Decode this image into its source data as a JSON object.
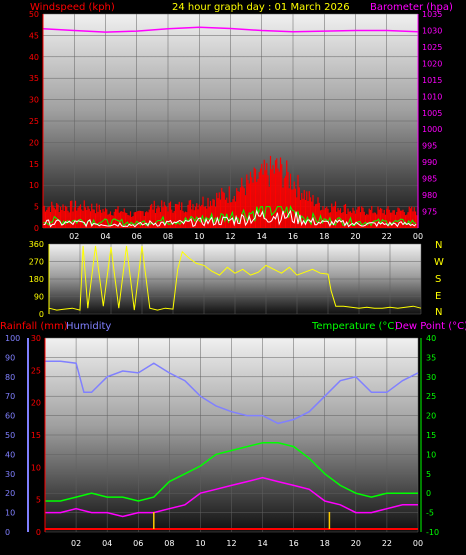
{
  "header": {
    "windspeed_label": "Windspeed (kph)",
    "date_title": "24 hour graph day : 01 March 2026",
    "barometer_label": "Barometer (hpa)"
  },
  "colors": {
    "wind": "#ff0000",
    "wind_low": "#ffffff",
    "wind_green": "#00ff00",
    "barometer": "#ff00ff",
    "direction": "#ffff00",
    "rainfall": "#ff0000",
    "humidity": "#8080ff",
    "temperature": "#00ff00",
    "dewpoint": "#ff00ff",
    "date_title": "#ffff00",
    "compass": "#ffff00",
    "rain_marks": "#ffcc00"
  },
  "time_axis": [
    "02",
    "04",
    "06",
    "08",
    "10",
    "12",
    "14",
    "16",
    "18",
    "20",
    "22",
    "00"
  ],
  "panel2": {
    "compass_letters": [
      "N",
      "W",
      "S",
      "E",
      "N"
    ]
  },
  "panel3": {
    "rainfall_label": "Rainfall (mm)",
    "humidity_label": "Humidity",
    "temperature_label": "Temperature (°C)",
    "dewpoint_label": "Dew Point (°C)"
  },
  "chart_data": [
    {
      "type": "line",
      "title": "24 hour graph day : 01 March 2026",
      "series": [
        {
          "name": "Windspeed (kph)",
          "x": [
            0,
            1,
            2,
            3,
            4,
            5,
            6,
            7,
            8,
            9,
            10,
            11,
            12,
            13,
            14,
            15,
            16,
            17,
            18,
            19,
            20,
            21,
            22,
            23,
            24
          ],
          "values": [
            5,
            5,
            5,
            5,
            4,
            4,
            3,
            5,
            5,
            5,
            6,
            7,
            8,
            10,
            12,
            14,
            11,
            7,
            5,
            5,
            4,
            4,
            4,
            4,
            4
          ]
        },
        {
          "name": "Barometer (hpa)",
          "x": [
            0,
            2,
            4,
            6,
            8,
            10,
            12,
            14,
            16,
            18,
            20,
            22,
            24
          ],
          "values": [
            1030.5,
            1030.0,
            1029.5,
            1029.8,
            1030.5,
            1031.0,
            1030.6,
            1030.0,
            1029.6,
            1029.8,
            1030.0,
            1030.0,
            1029.6
          ]
        }
      ],
      "y_left": {
        "label": "Windspeed (kph)",
        "ylim": [
          0,
          50
        ],
        "ticks": [
          0,
          5,
          10,
          15,
          20,
          25,
          30,
          35,
          40,
          45,
          50
        ]
      },
      "y_right": {
        "label": "Barometer (hpa)",
        "ylim": [
          970,
          1035
        ],
        "ticks": [
          975,
          980,
          985,
          990,
          995,
          1000,
          1005,
          1010,
          1015,
          1020,
          1025,
          1030,
          1035
        ]
      },
      "x_ticks": [
        "02",
        "04",
        "06",
        "08",
        "10",
        "12",
        "14",
        "16",
        "18",
        "20",
        "22",
        "00"
      ]
    },
    {
      "type": "line",
      "series": [
        {
          "name": "Wind direction",
          "x": [
            0,
            0.5,
            1,
            1.5,
            2,
            2.2,
            2.5,
            3,
            3.5,
            4,
            4.5,
            5,
            5.5,
            6,
            6.5,
            7,
            7.5,
            8,
            8.3,
            8.6,
            9,
            9.5,
            10,
            10.5,
            11,
            11.5,
            12,
            12.5,
            13,
            13.5,
            14,
            14.5,
            15,
            15.5,
            16,
            16.5,
            17,
            17.5,
            18,
            18.2,
            18.5,
            19,
            19.5,
            20,
            20.5,
            21,
            21.5,
            22,
            22.5,
            23,
            23.5,
            24
          ],
          "values": [
            30,
            20,
            25,
            30,
            20,
            350,
            30,
            350,
            40,
            345,
            30,
            350,
            20,
            350,
            30,
            20,
            30,
            25,
            230,
            320,
            290,
            260,
            250,
            220,
            200,
            240,
            210,
            230,
            200,
            215,
            250,
            230,
            210,
            240,
            200,
            215,
            230,
            210,
            205,
            120,
            40,
            40,
            35,
            30,
            35,
            30,
            30,
            35,
            30,
            35,
            40,
            30
          ]
        }
      ],
      "y_left": {
        "ylim": [
          0,
          360
        ],
        "ticks": [
          0,
          90,
          180,
          270,
          360
        ]
      },
      "compass": [
        "N",
        "W",
        "S",
        "E",
        "N"
      ]
    },
    {
      "type": "line",
      "series": [
        {
          "name": "Humidity",
          "x": [
            0,
            1,
            2,
            2.5,
            3,
            4,
            5,
            6,
            7,
            8,
            9,
            10,
            11,
            12,
            13,
            14,
            15,
            16,
            17,
            18,
            19,
            20,
            21,
            22,
            23,
            24
          ],
          "values": [
            88,
            88,
            87,
            72,
            72,
            80,
            83,
            82,
            87,
            82,
            78,
            70,
            65,
            62,
            60,
            60,
            56,
            58,
            62,
            70,
            78,
            80,
            72,
            72,
            78,
            82
          ]
        },
        {
          "name": "Temperature (°C)",
          "x": [
            0,
            1,
            2,
            3,
            4,
            5,
            6,
            7,
            8,
            9,
            10,
            11,
            12,
            13,
            14,
            15,
            16,
            17,
            18,
            19,
            20,
            21,
            22,
            23,
            24
          ],
          "values": [
            -2,
            -2,
            -1,
            0,
            -1,
            -1,
            -2,
            -1,
            3,
            5,
            7,
            10,
            11,
            12,
            13,
            13,
            12,
            9,
            5,
            2,
            0,
            -1,
            0,
            0,
            0
          ]
        },
        {
          "name": "Dew Point (°C)",
          "x": [
            0,
            1,
            2,
            3,
            4,
            5,
            6,
            7,
            8,
            9,
            10,
            11,
            12,
            13,
            14,
            15,
            16,
            17,
            18,
            19,
            20,
            21,
            22,
            23,
            24
          ],
          "values": [
            -5,
            -5,
            -4,
            -5,
            -5,
            -6,
            -5,
            -5,
            -4,
            -3,
            0,
            1,
            2,
            3,
            4,
            3,
            2,
            1,
            -2,
            -3,
            -5,
            -5,
            -4,
            -3,
            -3
          ]
        },
        {
          "name": "Rainfall (mm)",
          "x": [
            7,
            18.3
          ],
          "values": [
            0.2,
            0.2
          ]
        }
      ],
      "y_humidity": {
        "label": "Humidity",
        "ylim": [
          0,
          100
        ],
        "ticks": [
          0,
          10,
          20,
          30,
          40,
          50,
          60,
          70,
          80,
          90,
          100
        ]
      },
      "y_rain": {
        "label": "Rainfall (mm)",
        "ylim": [
          0,
          30
        ],
        "ticks": [
          0,
          5,
          10,
          15,
          20,
          25,
          30
        ]
      },
      "y_right": {
        "label": "Temperature (°C)",
        "ylim": [
          -10,
          40
        ],
        "ticks": [
          -10,
          -5,
          0,
          5,
          10,
          15,
          20,
          25,
          30,
          35,
          40
        ]
      },
      "x_ticks": [
        "02",
        "04",
        "06",
        "08",
        "10",
        "12",
        "14",
        "16",
        "18",
        "20",
        "22",
        "00"
      ]
    }
  ]
}
